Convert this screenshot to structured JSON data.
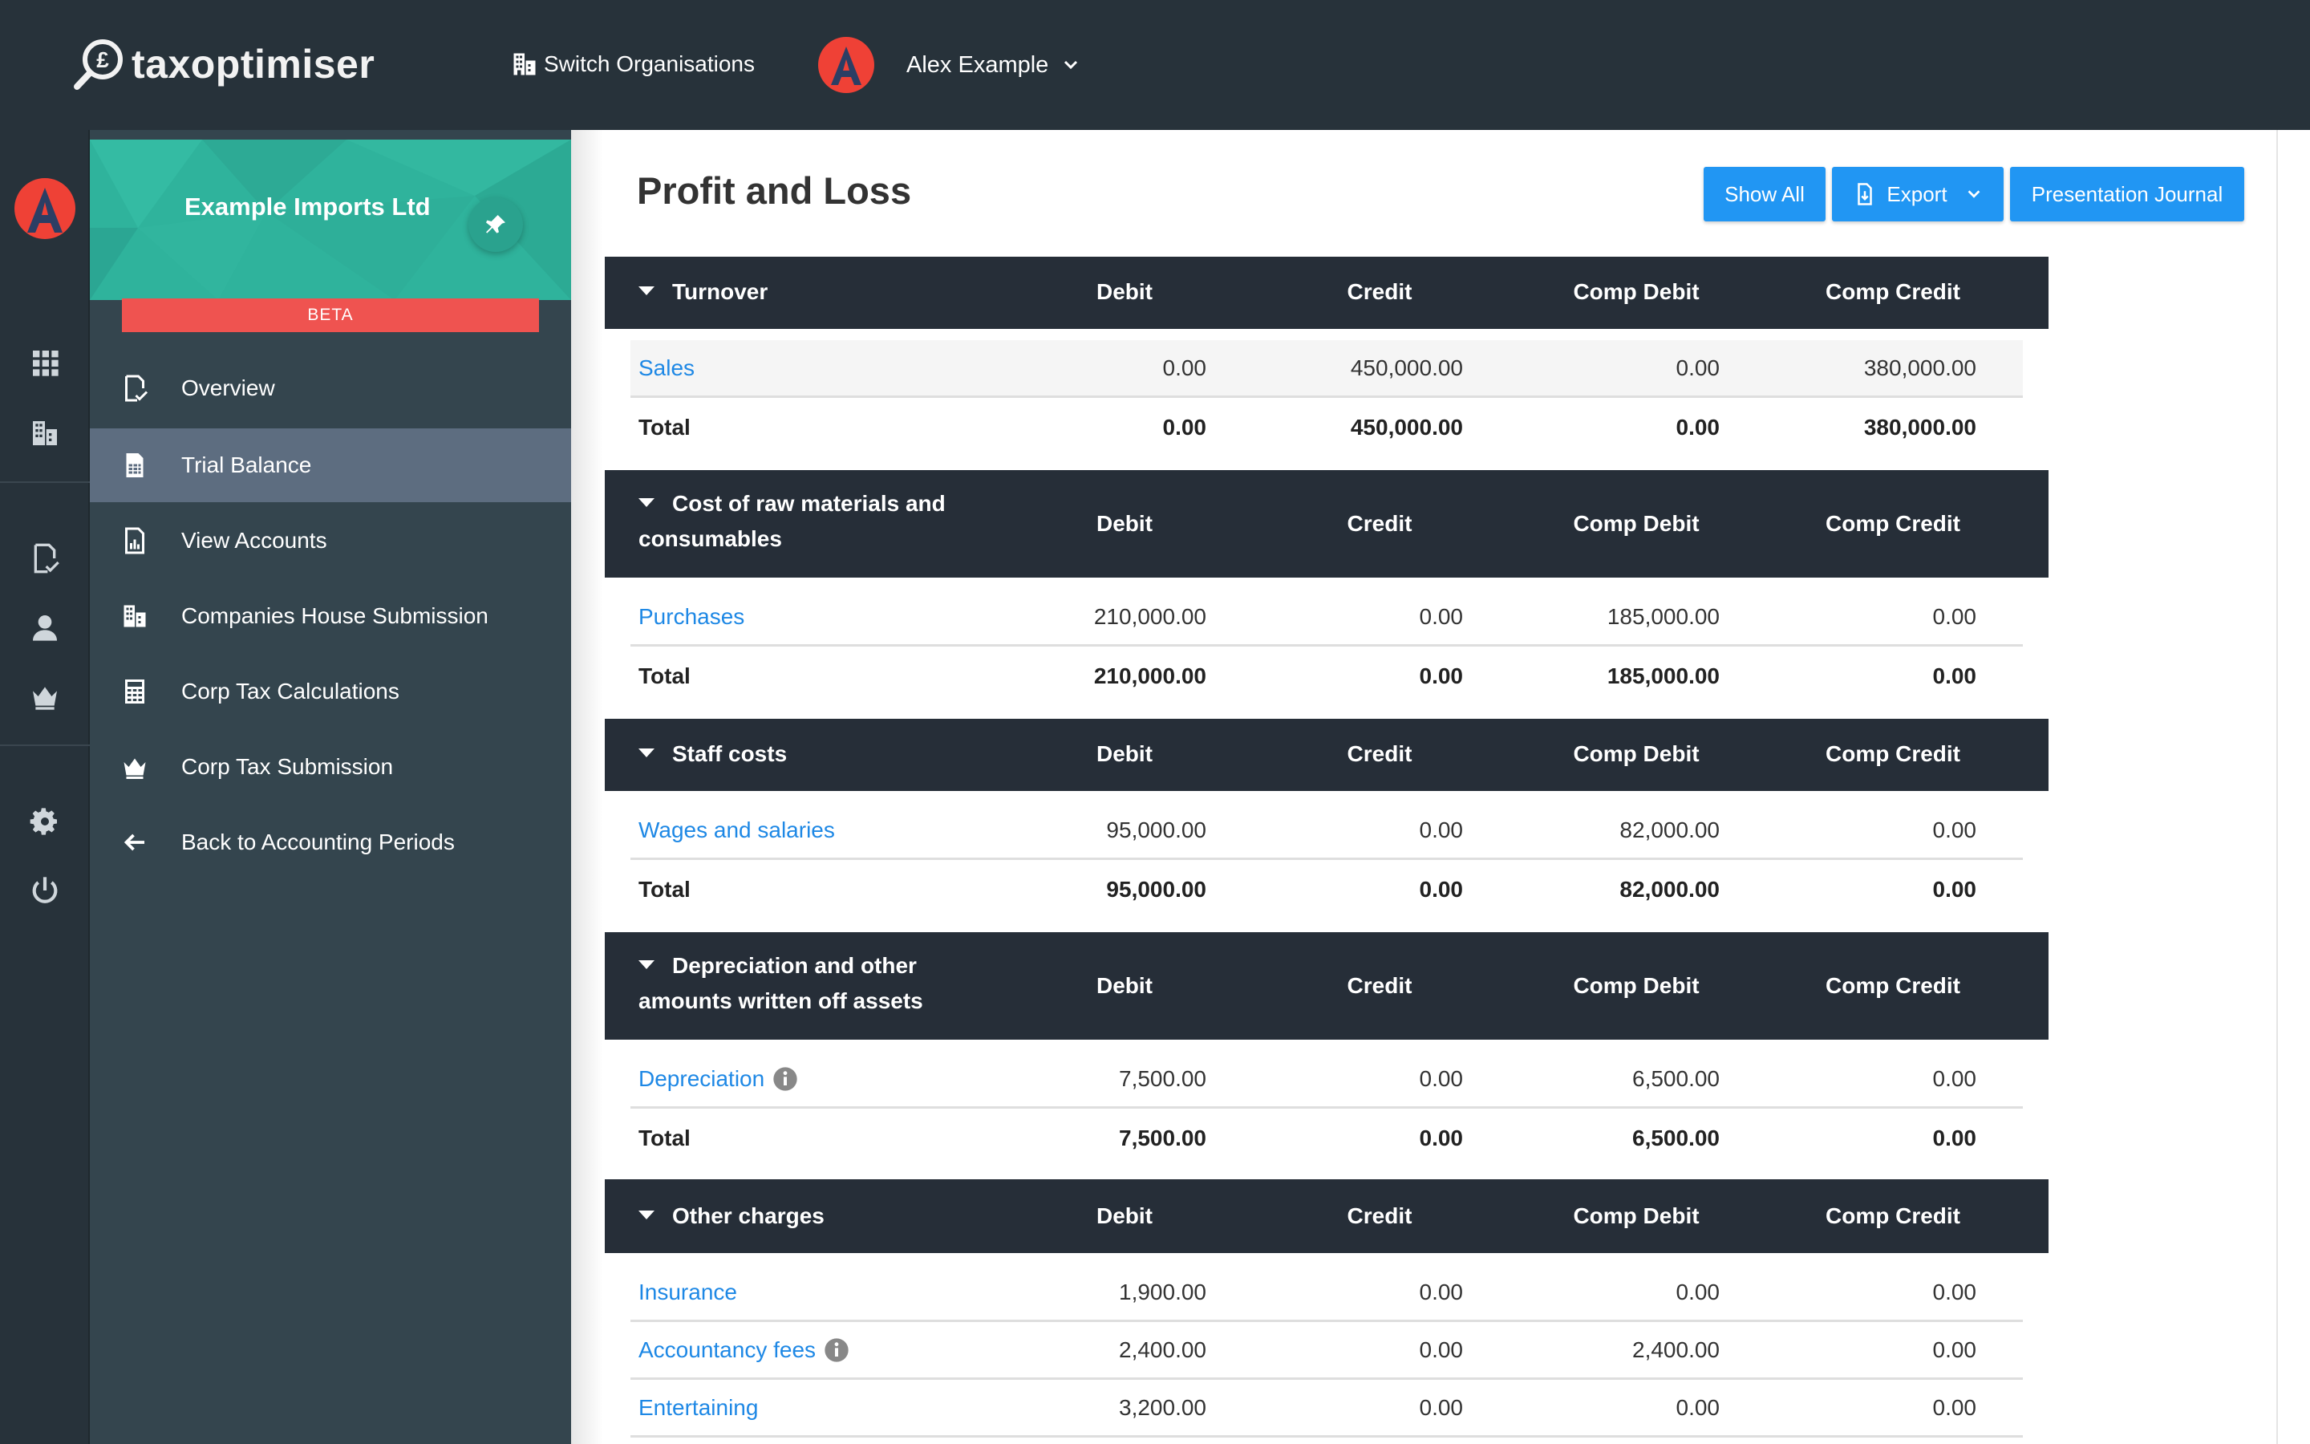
{
  "app": {
    "brand": "taxoptimiser"
  },
  "topbar": {
    "switch_org_label": "Switch Organisations",
    "user_name": "Alex Example",
    "avatar_letter": "A"
  },
  "sidebar": {
    "org_name": "Example Imports Ltd",
    "badge": "BETA",
    "items": [
      {
        "label": "Overview",
        "icon": "document-check-icon"
      },
      {
        "label": "Trial Balance",
        "icon": "spreadsheet-icon",
        "active": true
      },
      {
        "label": "View Accounts",
        "icon": "report-chart-icon"
      },
      {
        "label": "Companies House Submission",
        "icon": "building-icon"
      },
      {
        "label": "Corp Tax Calculations",
        "icon": "calculator-icon"
      },
      {
        "label": "Corp Tax Submission",
        "icon": "crown-icon"
      },
      {
        "label": "Back to Accounting Periods",
        "icon": "arrow-left-icon"
      }
    ]
  },
  "main": {
    "title": "Profit and Loss",
    "buttons": {
      "show_all": "Show All",
      "export": "Export",
      "presentation_journal": "Presentation Journal"
    },
    "columns": [
      "Debit",
      "Credit",
      "Comp Debit",
      "Comp Credit"
    ],
    "total_label": "Total",
    "sections": [
      {
        "title": "Turnover",
        "rows": [
          {
            "name": "Sales",
            "debit": "0.00",
            "credit": "450,000.00",
            "comp_debit": "0.00",
            "comp_credit": "380,000.00"
          }
        ],
        "total": {
          "debit": "0.00",
          "credit": "450,000.00",
          "comp_debit": "0.00",
          "comp_credit": "380,000.00"
        }
      },
      {
        "title_line1": "Cost of raw materials and",
        "title_line2": "consumables",
        "rows": [
          {
            "name": "Purchases",
            "debit": "210,000.00",
            "credit": "0.00",
            "comp_debit": "185,000.00",
            "comp_credit": "0.00"
          }
        ],
        "total": {
          "debit": "210,000.00",
          "credit": "0.00",
          "comp_debit": "185,000.00",
          "comp_credit": "0.00"
        }
      },
      {
        "title": "Staff costs",
        "rows": [
          {
            "name": "Wages and salaries",
            "debit": "95,000.00",
            "credit": "0.00",
            "comp_debit": "82,000.00",
            "comp_credit": "0.00"
          }
        ],
        "total": {
          "debit": "95,000.00",
          "credit": "0.00",
          "comp_debit": "82,000.00",
          "comp_credit": "0.00"
        }
      },
      {
        "title_line1": "Depreciation and other",
        "title_line2": "amounts written off assets",
        "rows": [
          {
            "name": "Depreciation",
            "debit": "7,500.00",
            "credit": "0.00",
            "comp_debit": "6,500.00",
            "comp_credit": "0.00"
          }
        ],
        "total": {
          "debit": "7,500.00",
          "credit": "0.00",
          "comp_debit": "6,500.00",
          "comp_credit": "0.00"
        }
      },
      {
        "title": "Other charges",
        "rows": [
          {
            "name": "Insurance",
            "debit": "1,900.00",
            "credit": "0.00",
            "comp_debit": "0.00",
            "comp_credit": "0.00"
          },
          {
            "name": "Accountancy fees",
            "debit": "2,400.00",
            "credit": "0.00",
            "comp_debit": "2,400.00",
            "comp_credit": "0.00"
          },
          {
            "name": "Entertaining",
            "debit": "3,200.00",
            "credit": "0.00",
            "comp_debit": "0.00",
            "comp_credit": "0.00"
          }
        ]
      }
    ]
  },
  "colors": {
    "topbar": "#27323a",
    "sidebar": "#34454e",
    "accent_teal": "#2fb39c",
    "primary_blue": "#2196f3",
    "beta_red": "#ef5350",
    "section_header": "#262e38"
  }
}
